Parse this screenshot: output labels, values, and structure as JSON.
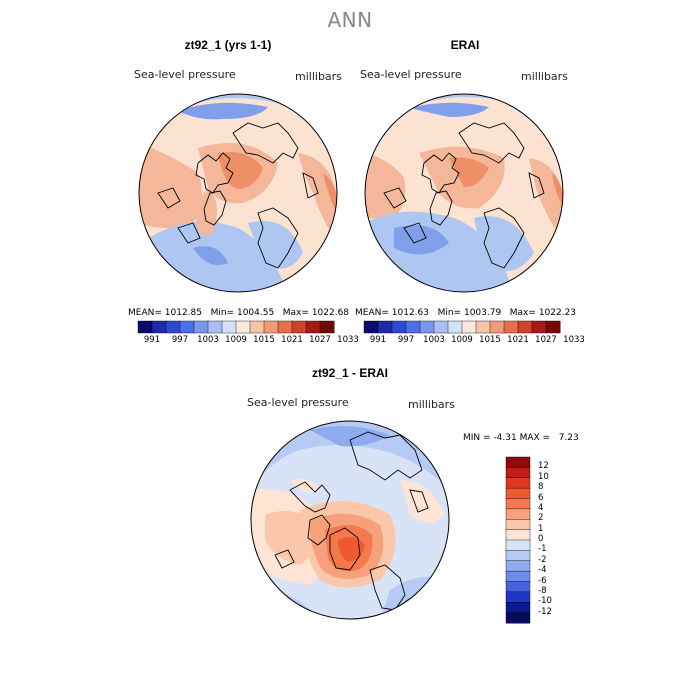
{
  "main_title": "ANN",
  "panels": [
    {
      "title": "zt92_1 (yrs 1-1)",
      "variable": "Sea-level pressure",
      "units": "millibars",
      "mean_label": "MEAN=",
      "mean": "1012.85",
      "min_label": "Min=",
      "min": "1004.55",
      "max_label": "Max=",
      "max": "1022.68"
    },
    {
      "title": "ERAI",
      "variable": "Sea-level pressure",
      "units": "millibars",
      "mean_label": "MEAN=",
      "mean": "1012.63",
      "min_label": "Min=",
      "min": "1003.79",
      "max_label": "Max=",
      "max": "1022.23"
    }
  ],
  "abs_colorbar": {
    "tick_labels": [
      "991",
      "997",
      "1003",
      "1009",
      "1015",
      "1021",
      "1027",
      "1033"
    ],
    "colors": [
      "#0b0b6e",
      "#1f2aa8",
      "#2f48d4",
      "#4a6fe8",
      "#7898ee",
      "#a9c0f4",
      "#d3e1fa",
      "#fbe8da",
      "#f6c4a6",
      "#f09c76",
      "#e76f4b",
      "#d1412b",
      "#a81a18",
      "#770707"
    ]
  },
  "diff_panel": {
    "title": "zt92_1 - ERAI",
    "variable": "Sea-level pressure",
    "units": "millibars",
    "min_label": "MIN =",
    "min": "-4.31",
    "max_label": "MAX =",
    "max": "7.23"
  },
  "diff_colorbar": {
    "levels": [
      "12",
      "10",
      "8",
      "6",
      "4",
      "2",
      "1",
      "0",
      "-1",
      "-2",
      "-4",
      "-6",
      "-8",
      "-10",
      "-12"
    ],
    "colors": [
      "#8f0a0a",
      "#c21d16",
      "#e2361f",
      "#f0592f",
      "#f47a4e",
      "#f7a07c",
      "#fbc7aa",
      "#fde4d5",
      "#d8e3f7",
      "#b5cbf3",
      "#8eaced",
      "#6a8ce8",
      "#4263dd",
      "#2136c4",
      "#0b1896",
      "#070a5c"
    ]
  },
  "map_colors": {
    "high": "#f4b79a",
    "mid_high": "#fbe2d1",
    "low": "#aec7f2",
    "lower": "#7f9feb",
    "strong_high": "#ee8f68",
    "strongest_high": "#e4603d"
  }
}
